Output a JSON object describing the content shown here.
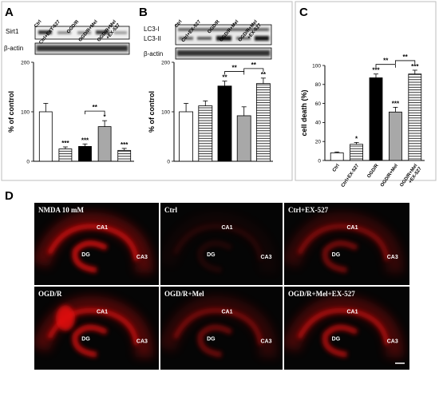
{
  "panels": {
    "A": {
      "letter": "A"
    },
    "B": {
      "letter": "B"
    },
    "C": {
      "letter": "C"
    },
    "D": {
      "letter": "D"
    }
  },
  "blots": {
    "A": {
      "rows": [
        "Sirt1",
        "β-actin"
      ]
    },
    "B": {
      "rows": [
        "LC3-I",
        "LC3-II",
        "β-actin"
      ]
    }
  },
  "chart_data": [
    {
      "panel": "A",
      "type": "bar",
      "categories": [
        "Ctrl",
        "Ctrl+EXT-527",
        "OGD/R",
        "OGD/R+Mel",
        "OGD/R+Mel +EX-527"
      ],
      "values": [
        100,
        25,
        30,
        70,
        22
      ],
      "errors": [
        17,
        4,
        5,
        12,
        4
      ],
      "significance": [
        "",
        "***",
        "***",
        "*",
        "***"
      ],
      "fills": [
        "white",
        "hstripes",
        "black",
        "gray",
        "hstripes"
      ],
      "bracket": {
        "from": 2,
        "to": 3,
        "label": "**"
      },
      "ylabel": "% of control",
      "ylim": [
        0,
        200
      ],
      "yticks": [
        0,
        100,
        200
      ]
    },
    {
      "panel": "B",
      "type": "bar",
      "categories": [
        "Ctrl",
        "Ctrl+EX-527",
        "OGD/R",
        "OGD/R+Mel",
        "OGD/R+Mel +EX-527"
      ],
      "values": [
        100,
        112,
        152,
        92,
        157
      ],
      "errors": [
        17,
        10,
        10,
        18,
        11
      ],
      "significance": [
        "",
        "",
        "**",
        "",
        "**"
      ],
      "fills": [
        "white",
        "hstripes",
        "black",
        "gray",
        "hstripes"
      ],
      "brackets": [
        {
          "from": 2,
          "to": 3,
          "label": "**"
        },
        {
          "from": 3,
          "to": 4,
          "label": "**"
        }
      ],
      "ylabel": "% of control",
      "ylim": [
        0,
        200
      ],
      "yticks": [
        0,
        100,
        200
      ]
    },
    {
      "panel": "C",
      "type": "bar",
      "categories": [
        "Ctrl",
        "Ctrl+EX-527",
        "OGD/R",
        "OGD/R+Mel",
        "OGD/R+Mel +EX-527"
      ],
      "values": [
        8,
        17,
        87,
        51,
        91
      ],
      "errors": [
        1,
        2,
        4,
        5,
        4
      ],
      "significance": [
        "",
        "*",
        "***",
        "***",
        "***"
      ],
      "fills": [
        "white",
        "hstripes",
        "black",
        "gray",
        "hstripes"
      ],
      "brackets": [
        {
          "from": 2,
          "to": 3,
          "label": "**"
        },
        {
          "from": 3,
          "to": 4,
          "label": "**"
        }
      ],
      "ylabel": "cell death (%)",
      "ylim": [
        0,
        100
      ],
      "yticks": [
        0,
        20,
        40,
        60,
        80,
        100
      ]
    }
  ],
  "micrographs": [
    {
      "label": "NMDA 10 mM",
      "regions": [
        "CA1",
        "DG",
        "CA3"
      ]
    },
    {
      "label": "Ctrl",
      "regions": [
        "CA1",
        "DG",
        "CA3"
      ]
    },
    {
      "label": "Ctrl+EX-527",
      "regions": [
        "CA1",
        "DG",
        "CA3"
      ]
    },
    {
      "label": "OGD/R",
      "regions": [
        "CA1",
        "DG",
        "CA3"
      ]
    },
    {
      "label": "OGD/R+Mel",
      "regions": [
        "CA1",
        "DG",
        "CA3"
      ]
    },
    {
      "label": "OGD/R+Mel+EX-527",
      "regions": [
        "CA1",
        "DG",
        "CA3"
      ]
    }
  ],
  "colors": {
    "fluorescence": "#e01010",
    "bar_gray": "#a8a8a8",
    "background_micro": "#050505"
  }
}
